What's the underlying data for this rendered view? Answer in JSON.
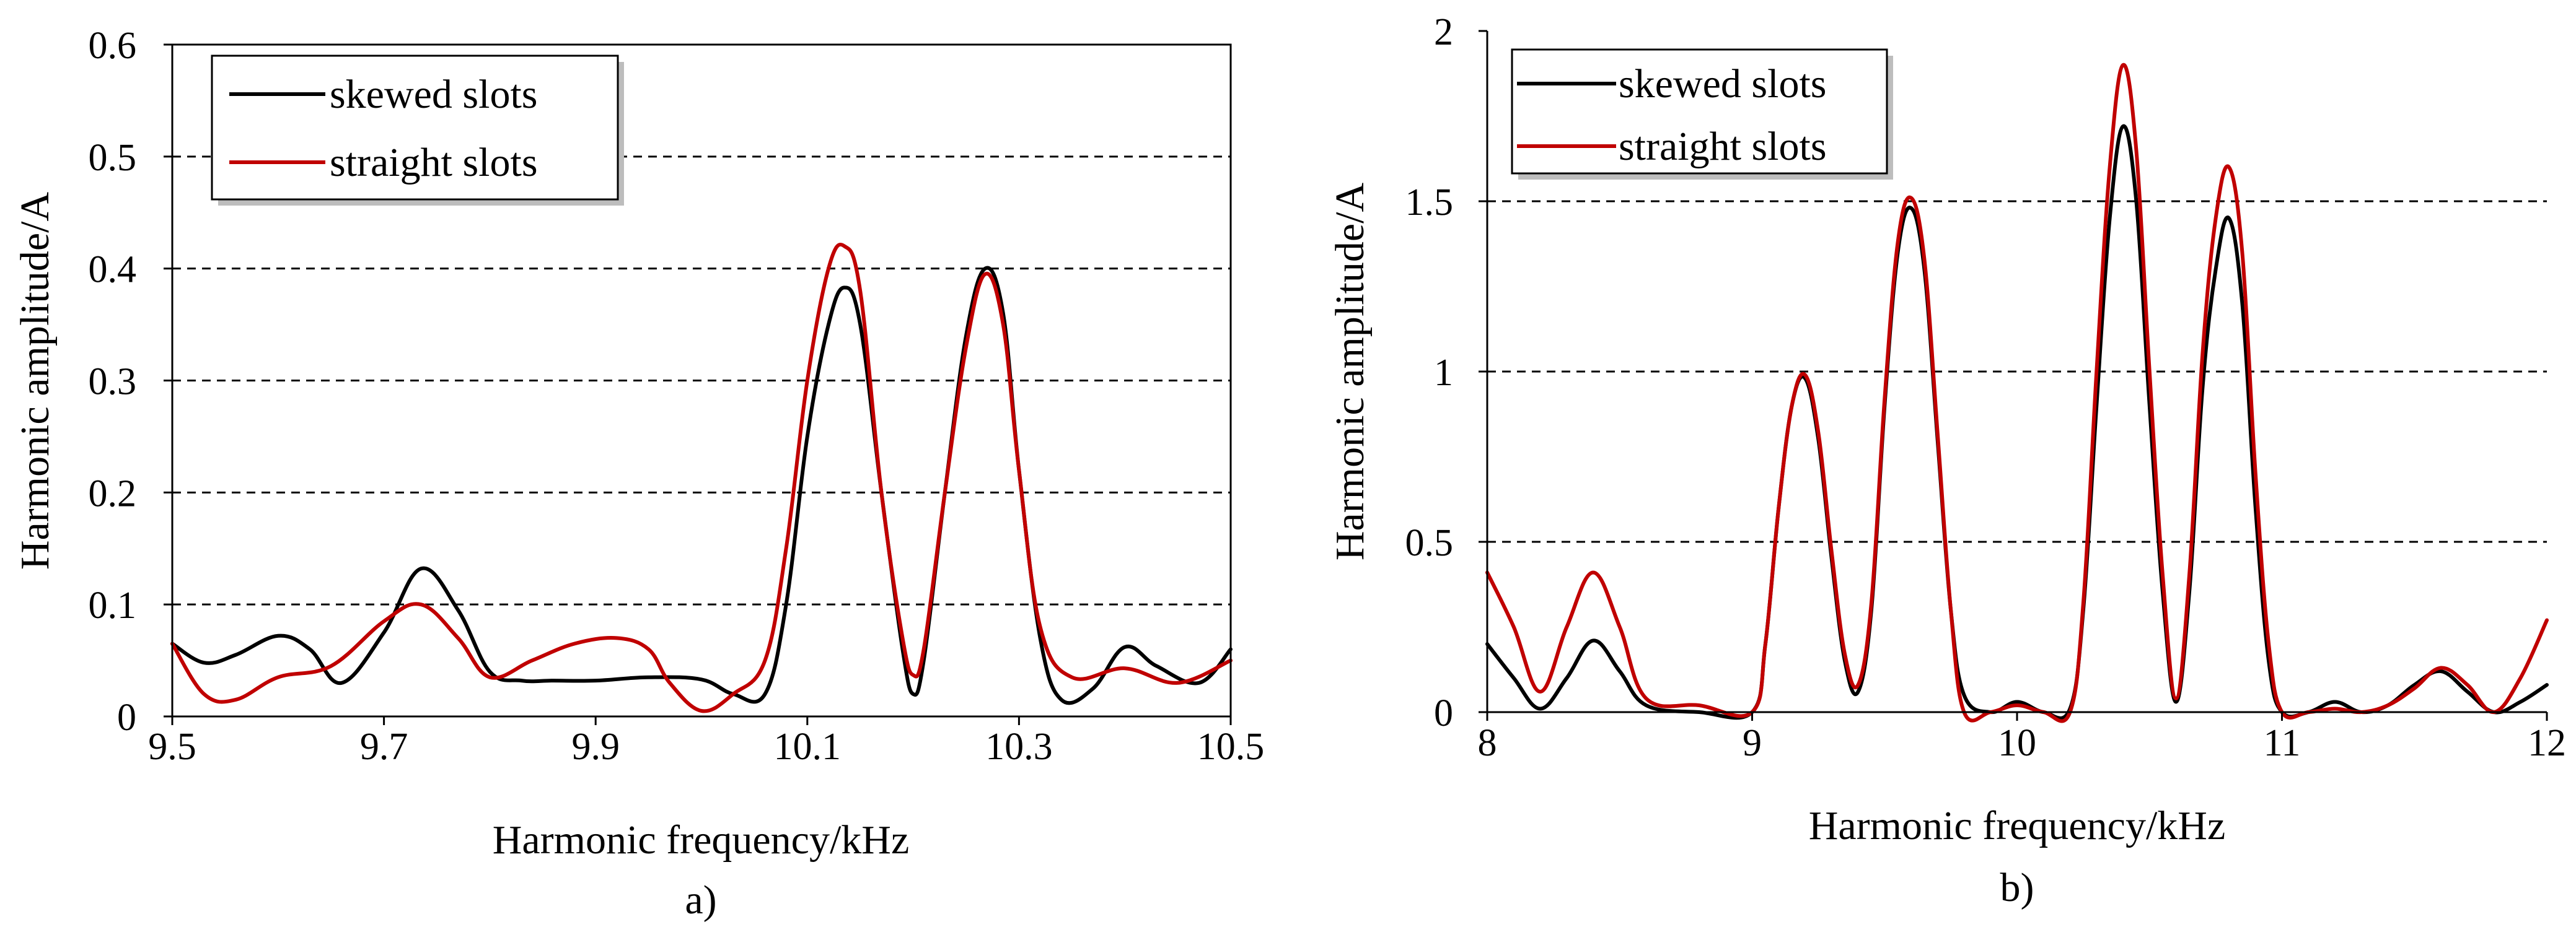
{
  "chart_data": [
    {
      "type": "line",
      "panel_label": "a)",
      "xlabel": "Harmonic frequency/kHz",
      "ylabel": "Harmonic amplitude/A",
      "xlim": [
        9.5,
        10.5
      ],
      "ylim": [
        0,
        0.6
      ],
      "xticks": [
        9.5,
        9.7,
        9.9,
        10.1,
        10.3,
        10.5
      ],
      "xtick_labels": [
        "9.5",
        "9.7",
        "9.9",
        "10.1",
        "10.3",
        "10.5"
      ],
      "yticks": [
        0,
        0.1,
        0.2,
        0.3,
        0.4,
        0.5,
        0.6
      ],
      "ytick_labels": [
        "0",
        "0.1",
        "0.2",
        "0.3",
        "0.4",
        "0.5",
        "0.6"
      ],
      "grid": "horizontal-dashed",
      "legend_position": "top-left",
      "series": [
        {
          "name": "skewed slots",
          "color": "#000000",
          "x": [
            9.5,
            9.53,
            9.56,
            9.6,
            9.63,
            9.66,
            9.7,
            9.735,
            9.77,
            9.8,
            9.83,
            9.86,
            9.9,
            9.95,
            10.0,
            10.03,
            10.06,
            10.08,
            10.1,
            10.12,
            10.135,
            10.15,
            10.17,
            10.19,
            10.2,
            10.21,
            10.23,
            10.25,
            10.268,
            10.285,
            10.3,
            10.32,
            10.34,
            10.37,
            10.4,
            10.43,
            10.47,
            10.5
          ],
          "y": [
            0.065,
            0.048,
            0.055,
            0.072,
            0.06,
            0.03,
            0.075,
            0.132,
            0.095,
            0.04,
            0.032,
            0.032,
            0.032,
            0.035,
            0.033,
            0.02,
            0.02,
            0.1,
            0.25,
            0.35,
            0.383,
            0.35,
            0.2,
            0.06,
            0.02,
            0.05,
            0.2,
            0.34,
            0.4,
            0.36,
            0.22,
            0.07,
            0.015,
            0.025,
            0.062,
            0.045,
            0.03,
            0.06
          ]
        },
        {
          "name": "straight slots",
          "color": "#c00000",
          "x": [
            9.5,
            9.53,
            9.56,
            9.6,
            9.65,
            9.7,
            9.735,
            9.77,
            9.8,
            9.84,
            9.88,
            9.92,
            9.95,
            9.97,
            10.0,
            10.03,
            10.06,
            10.08,
            10.1,
            10.12,
            10.135,
            10.15,
            10.17,
            10.19,
            10.2,
            10.21,
            10.23,
            10.25,
            10.268,
            10.285,
            10.3,
            10.32,
            10.35,
            10.4,
            10.45,
            10.5
          ],
          "y": [
            0.065,
            0.02,
            0.015,
            0.035,
            0.045,
            0.085,
            0.1,
            0.07,
            0.035,
            0.05,
            0.065,
            0.07,
            0.06,
            0.03,
            0.005,
            0.02,
            0.05,
            0.15,
            0.3,
            0.4,
            0.42,
            0.38,
            0.2,
            0.07,
            0.037,
            0.06,
            0.2,
            0.33,
            0.395,
            0.35,
            0.22,
            0.08,
            0.035,
            0.043,
            0.03,
            0.05
          ]
        }
      ]
    },
    {
      "type": "line",
      "panel_label": "b)",
      "xlabel": "Harmonic frequency/kHz",
      "ylabel": "Harmonic amplitude/A",
      "xlim": [
        8,
        12
      ],
      "ylim": [
        0,
        2
      ],
      "xticks": [
        8,
        9,
        10,
        11,
        12
      ],
      "xtick_labels": [
        "8",
        "9",
        "10",
        "11",
        "12"
      ],
      "yticks": [
        0,
        0.5,
        1,
        1.5,
        2
      ],
      "ytick_labels": [
        "0",
        "0.5",
        "1",
        "1.5",
        "2"
      ],
      "grid": "horizontal-dashed",
      "legend_position": "top-left",
      "series": [
        {
          "name": "skewed slots",
          "color": "#000000",
          "x": [
            8.0,
            8.1,
            8.2,
            8.3,
            8.4,
            8.5,
            8.6,
            8.8,
            9.0,
            9.05,
            9.1,
            9.15,
            9.2,
            9.25,
            9.3,
            9.35,
            9.4,
            9.45,
            9.5,
            9.55,
            9.6,
            9.65,
            9.7,
            9.75,
            9.8,
            9.9,
            10.0,
            10.1,
            10.2,
            10.25,
            10.3,
            10.35,
            10.4,
            10.45,
            10.5,
            10.55,
            10.6,
            10.65,
            10.7,
            10.75,
            10.8,
            10.85,
            10.9,
            10.95,
            11.0,
            11.1,
            11.2,
            11.3,
            11.4,
            11.5,
            11.6,
            11.7,
            11.8,
            11.9,
            12.0
          ],
          "y": [
            0.2,
            0.1,
            0.01,
            0.1,
            0.21,
            0.12,
            0.02,
            0.0,
            0.0,
            0.2,
            0.6,
            0.9,
            0.98,
            0.8,
            0.45,
            0.15,
            0.06,
            0.3,
            0.9,
            1.35,
            1.48,
            1.3,
            0.8,
            0.3,
            0.05,
            0.0,
            0.03,
            0.0,
            0.01,
            0.3,
            0.9,
            1.45,
            1.72,
            1.5,
            0.9,
            0.35,
            0.03,
            0.35,
            0.95,
            1.3,
            1.45,
            1.2,
            0.6,
            0.15,
            0.0,
            0.0,
            0.03,
            0.0,
            0.02,
            0.08,
            0.12,
            0.06,
            0.0,
            0.03,
            0.08
          ]
        },
        {
          "name": "straight slots",
          "color": "#c00000",
          "x": [
            8.0,
            8.1,
            8.2,
            8.3,
            8.4,
            8.5,
            8.6,
            8.8,
            9.0,
            9.05,
            9.1,
            9.15,
            9.2,
            9.25,
            9.3,
            9.35,
            9.4,
            9.45,
            9.5,
            9.55,
            9.6,
            9.65,
            9.7,
            9.75,
            9.8,
            9.9,
            10.0,
            10.1,
            10.2,
            10.25,
            10.3,
            10.35,
            10.4,
            10.45,
            10.5,
            10.55,
            10.6,
            10.65,
            10.7,
            10.75,
            10.8,
            10.85,
            10.9,
            10.95,
            11.0,
            11.1,
            11.2,
            11.3,
            11.4,
            11.5,
            11.6,
            11.7,
            11.8,
            11.9,
            12.0
          ],
          "y": [
            0.41,
            0.25,
            0.06,
            0.25,
            0.41,
            0.25,
            0.04,
            0.02,
            0.0,
            0.2,
            0.6,
            0.9,
            0.99,
            0.82,
            0.47,
            0.17,
            0.08,
            0.32,
            0.92,
            1.38,
            1.51,
            1.33,
            0.82,
            0.3,
            0.0,
            0.0,
            0.02,
            0.0,
            0.0,
            0.32,
            1.0,
            1.6,
            1.9,
            1.65,
            1.0,
            0.4,
            0.04,
            0.4,
            1.05,
            1.45,
            1.6,
            1.35,
            0.7,
            0.2,
            0.0,
            0.0,
            0.01,
            0.0,
            0.02,
            0.07,
            0.13,
            0.08,
            0.0,
            0.1,
            0.27
          ]
        }
      ]
    }
  ]
}
